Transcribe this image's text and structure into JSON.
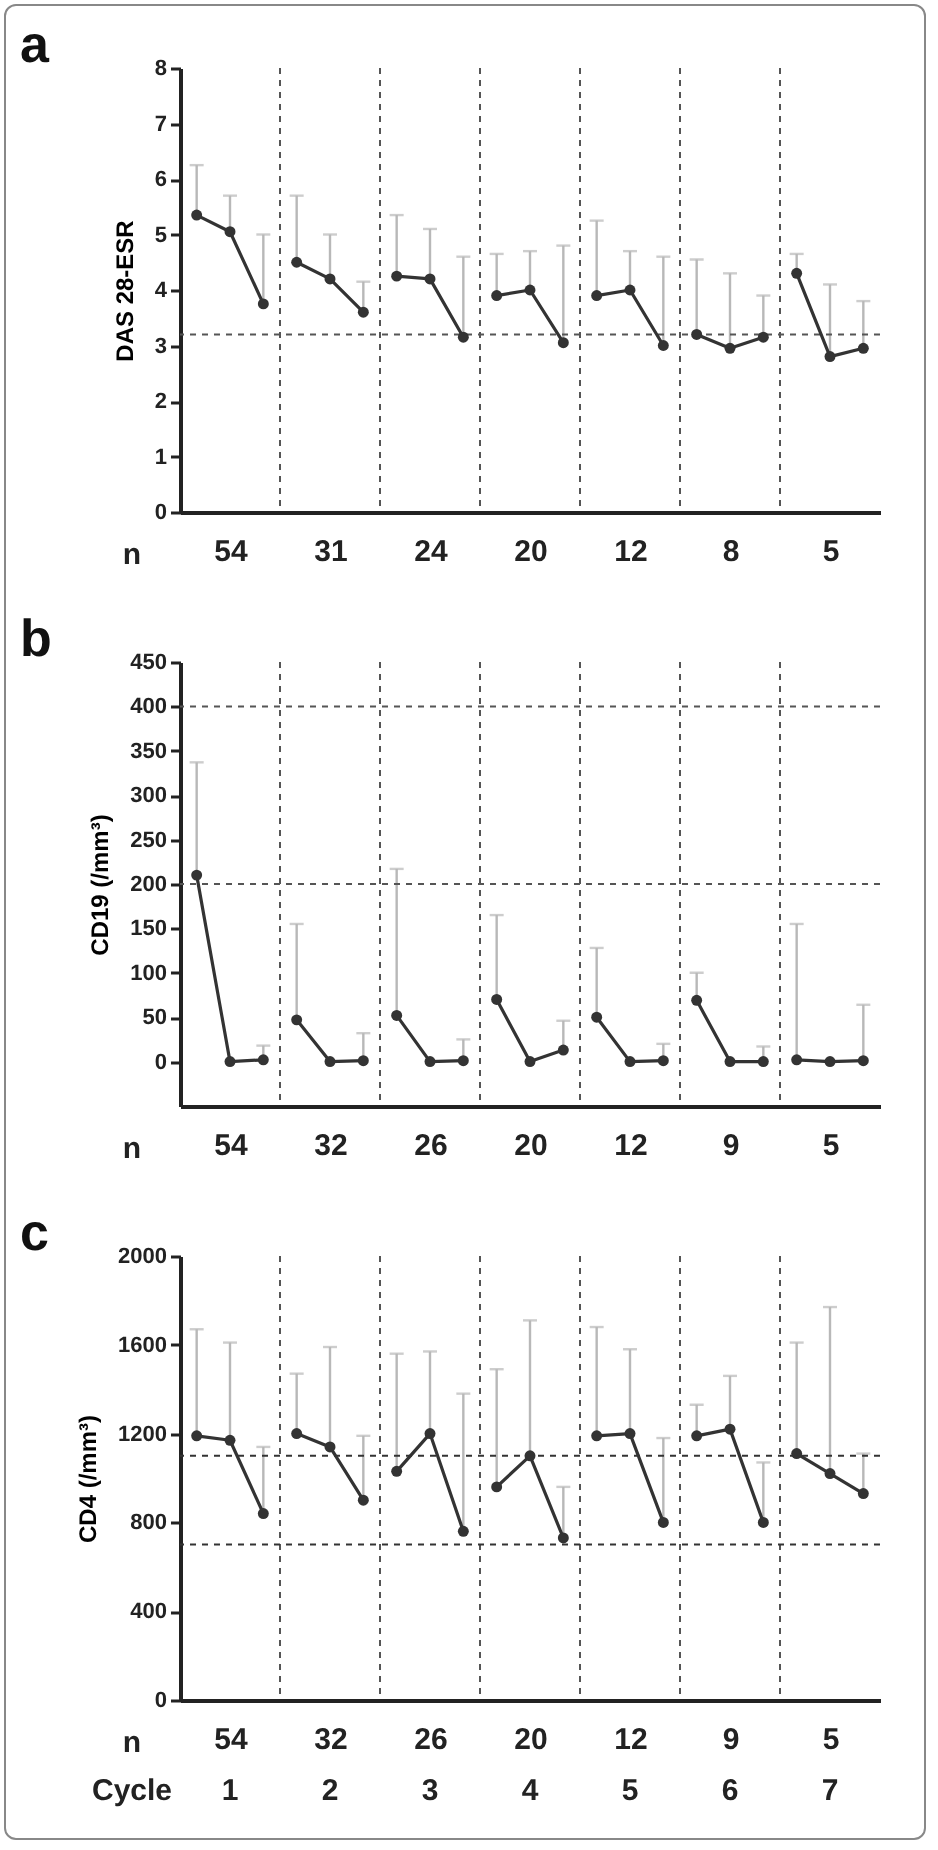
{
  "chart_data": [
    {
      "type": "line",
      "title": "a",
      "ylabel": "DAS 28-ESR",
      "marker": "circle",
      "line_style": "solid",
      "ylim": [
        0,
        8
      ],
      "yticks": [
        0,
        1,
        2,
        3,
        4,
        5,
        6,
        7,
        8
      ],
      "categories": [
        null,
        "54",
        null,
        null,
        "31",
        null,
        null,
        "24",
        null,
        null,
        "20",
        null,
        null,
        "12",
        null,
        null,
        "8",
        null,
        null,
        "5",
        null
      ],
      "annotations": [
        "n"
      ],
      "ref_lines": [
        {
          "axis": "y",
          "value": 3.2,
          "line_style": "dashed",
          "color": "#555555"
        }
      ],
      "series": [
        {
          "color": "#333333",
          "values": [
            5.35,
            5.05,
            3.75,
            null,
            null,
            null,
            null,
            null,
            null,
            null,
            null,
            null,
            null,
            null,
            null,
            null,
            null,
            null,
            null,
            null,
            null
          ],
          "errors": [
            [
              5.35,
              6.25
            ],
            [
              5.05,
              5.7
            ],
            [
              3.75,
              5.0
            ],
            null,
            null,
            null,
            null,
            null,
            null,
            null,
            null,
            null,
            null,
            null,
            null,
            null,
            null,
            null,
            null,
            null,
            null
          ]
        },
        {
          "color": "#333333",
          "values": [
            null,
            null,
            null,
            4.5,
            4.2,
            3.6,
            null,
            null,
            null,
            null,
            null,
            null,
            null,
            null,
            null,
            null,
            null,
            null,
            null,
            null,
            null
          ],
          "errors": [
            null,
            null,
            null,
            [
              4.5,
              5.7
            ],
            [
              4.2,
              5.0
            ],
            [
              3.6,
              4.15
            ],
            null,
            null,
            null,
            null,
            null,
            null,
            null,
            null,
            null,
            null,
            null,
            null,
            null,
            null,
            null
          ]
        },
        {
          "color": "#333333",
          "values": [
            null,
            null,
            null,
            null,
            null,
            null,
            4.25,
            4.2,
            3.15,
            null,
            null,
            null,
            null,
            null,
            null,
            null,
            null,
            null,
            null,
            null,
            null
          ],
          "errors": [
            null,
            null,
            null,
            null,
            null,
            null,
            [
              4.25,
              5.35
            ],
            [
              4.2,
              5.1
            ],
            [
              3.15,
              4.6
            ],
            null,
            null,
            null,
            null,
            null,
            null,
            null,
            null,
            null,
            null,
            null,
            null
          ]
        },
        {
          "color": "#333333",
          "values": [
            null,
            null,
            null,
            null,
            null,
            null,
            null,
            null,
            null,
            3.9,
            4.0,
            3.05,
            null,
            null,
            null,
            null,
            null,
            null,
            null,
            null,
            null
          ],
          "errors": [
            null,
            null,
            null,
            null,
            null,
            null,
            null,
            null,
            null,
            [
              3.9,
              4.65
            ],
            [
              4.0,
              4.7
            ],
            [
              3.05,
              4.8
            ],
            null,
            null,
            null,
            null,
            null,
            null,
            null,
            null,
            null
          ]
        },
        {
          "color": "#333333",
          "values": [
            null,
            null,
            null,
            null,
            null,
            null,
            null,
            null,
            null,
            null,
            null,
            null,
            3.9,
            4.0,
            3.0,
            null,
            null,
            null,
            null,
            null,
            null
          ],
          "errors": [
            null,
            null,
            null,
            null,
            null,
            null,
            null,
            null,
            null,
            null,
            null,
            null,
            [
              3.9,
              5.25
            ],
            [
              4.0,
              4.7
            ],
            [
              3.0,
              4.6
            ],
            null,
            null,
            null,
            null,
            null,
            null
          ]
        },
        {
          "color": "#333333",
          "values": [
            null,
            null,
            null,
            null,
            null,
            null,
            null,
            null,
            null,
            null,
            null,
            null,
            null,
            null,
            null,
            3.2,
            2.95,
            3.15,
            null,
            null,
            null
          ],
          "errors": [
            null,
            null,
            null,
            null,
            null,
            null,
            null,
            null,
            null,
            null,
            null,
            null,
            null,
            null,
            null,
            [
              3.2,
              4.55
            ],
            [
              2.95,
              4.3
            ],
            [
              3.15,
              3.9
            ],
            null,
            null,
            null
          ]
        },
        {
          "color": "#333333",
          "values": [
            null,
            null,
            null,
            null,
            null,
            null,
            null,
            null,
            null,
            null,
            null,
            null,
            null,
            null,
            null,
            null,
            null,
            null,
            4.3,
            2.8,
            2.95
          ],
          "errors": [
            null,
            null,
            null,
            null,
            null,
            null,
            null,
            null,
            null,
            null,
            null,
            null,
            null,
            null,
            null,
            null,
            null,
            null,
            [
              4.3,
              4.65
            ],
            [
              2.8,
              4.1
            ],
            [
              2.95,
              3.8
            ]
          ]
        }
      ]
    },
    {
      "type": "line",
      "title": "b",
      "ylabel": "CD19 (/mm³)",
      "marker": "circle",
      "line_style": "solid",
      "ylim": [
        -50,
        450
      ],
      "yticks": [
        0,
        50,
        100,
        150,
        200,
        250,
        300,
        350,
        400,
        450
      ],
      "categories": [
        null,
        "54",
        null,
        null,
        "32",
        null,
        null,
        "26",
        null,
        null,
        "20",
        null,
        null,
        "12",
        null,
        null,
        "9",
        null,
        null,
        "5",
        null
      ],
      "annotations": [
        "n"
      ],
      "ref_lines": [
        {
          "axis": "y",
          "value": 200,
          "line_style": "dashed",
          "color": "#555555"
        },
        {
          "axis": "y",
          "value": 400,
          "line_style": "dashed",
          "color": "#555555"
        }
      ],
      "series": [
        {
          "color": "#333333",
          "values": [
            210,
            0,
            2,
            null,
            null,
            null,
            null,
            null,
            null,
            null,
            null,
            null,
            null,
            null,
            null,
            null,
            null,
            null,
            null,
            null,
            null
          ],
          "errors": [
            [
              210,
              337
            ],
            null,
            [
              2,
              18
            ],
            null,
            null,
            null,
            null,
            null,
            null,
            null,
            null,
            null,
            null,
            null,
            null,
            null,
            null,
            null,
            null,
            null,
            null
          ]
        },
        {
          "color": "#333333",
          "values": [
            null,
            null,
            null,
            47,
            0,
            1,
            null,
            null,
            null,
            null,
            null,
            null,
            null,
            null,
            null,
            null,
            null,
            null,
            null,
            null,
            null
          ],
          "errors": [
            null,
            null,
            null,
            [
              47,
              155
            ],
            null,
            [
              1,
              32
            ],
            null,
            null,
            null,
            null,
            null,
            null,
            null,
            null,
            null,
            null,
            null,
            null,
            null,
            null,
            null
          ]
        },
        {
          "color": "#333333",
          "values": [
            null,
            null,
            null,
            null,
            null,
            null,
            52,
            0,
            1,
            null,
            null,
            null,
            null,
            null,
            null,
            null,
            null,
            null,
            null,
            null,
            null
          ],
          "errors": [
            null,
            null,
            null,
            null,
            null,
            null,
            [
              52,
              217
            ],
            null,
            [
              1,
              25
            ],
            null,
            null,
            null,
            null,
            null,
            null,
            null,
            null,
            null,
            null,
            null,
            null
          ]
        },
        {
          "color": "#333333",
          "values": [
            null,
            null,
            null,
            null,
            null,
            null,
            null,
            null,
            null,
            70,
            0,
            13,
            null,
            null,
            null,
            null,
            null,
            null,
            null,
            null,
            null
          ],
          "errors": [
            null,
            null,
            null,
            null,
            null,
            null,
            null,
            null,
            null,
            [
              70,
              165
            ],
            null,
            [
              13,
              46
            ],
            null,
            null,
            null,
            null,
            null,
            null,
            null,
            null,
            null
          ]
        },
        {
          "color": "#333333",
          "values": [
            null,
            null,
            null,
            null,
            null,
            null,
            null,
            null,
            null,
            null,
            null,
            null,
            50,
            0,
            1,
            null,
            null,
            null,
            null,
            null,
            null
          ],
          "errors": [
            null,
            null,
            null,
            null,
            null,
            null,
            null,
            null,
            null,
            null,
            null,
            null,
            [
              50,
              128
            ],
            null,
            [
              1,
              20
            ],
            null,
            null,
            null,
            null,
            null,
            null
          ]
        },
        {
          "color": "#333333",
          "values": [
            null,
            null,
            null,
            null,
            null,
            null,
            null,
            null,
            null,
            null,
            null,
            null,
            null,
            null,
            null,
            69,
            0,
            0,
            null,
            null,
            null
          ],
          "errors": [
            null,
            null,
            null,
            null,
            null,
            null,
            null,
            null,
            null,
            null,
            null,
            null,
            null,
            null,
            null,
            [
              69,
              100
            ],
            null,
            [
              0,
              17
            ],
            null,
            null,
            null
          ]
        },
        {
          "color": "#333333",
          "values": [
            null,
            null,
            null,
            null,
            null,
            null,
            null,
            null,
            null,
            null,
            null,
            null,
            null,
            null,
            null,
            null,
            null,
            null,
            2,
            0,
            1
          ],
          "errors": [
            null,
            null,
            null,
            null,
            null,
            null,
            null,
            null,
            null,
            null,
            null,
            null,
            null,
            null,
            null,
            null,
            null,
            null,
            [
              2,
              155
            ],
            null,
            [
              1,
              64
            ]
          ]
        }
      ]
    },
    {
      "type": "line",
      "title": "c",
      "ylabel": "CD4 (/mm³)",
      "marker": "circle",
      "line_style": "solid",
      "ylim": [
        0,
        2000
      ],
      "yticks": [
        0,
        400,
        800,
        1200,
        1600,
        2000
      ],
      "categories": [
        null,
        "54",
        null,
        null,
        "32",
        null,
        null,
        "26",
        null,
        null,
        "20",
        null,
        null,
        "12",
        null,
        null,
        "9",
        null,
        null,
        "5",
        null
      ],
      "annotations": [
        "n",
        "Cycle",
        "1",
        "2",
        "3",
        "4",
        "5",
        "6",
        "7"
      ],
      "ref_lines": [
        {
          "axis": "y",
          "value": 700,
          "line_style": "dashed",
          "color": "#333333"
        },
        {
          "axis": "y",
          "value": 1100,
          "line_style": "dashed",
          "color": "#333333"
        }
      ],
      "series": [
        {
          "color": "#333333",
          "values": [
            1190,
            1170,
            840,
            null,
            null,
            null,
            null,
            null,
            null,
            null,
            null,
            null,
            null,
            null,
            null,
            null,
            null,
            null,
            null,
            null,
            null
          ],
          "errors": [
            [
              1190,
              1670
            ],
            [
              1170,
              1610
            ],
            [
              840,
              1140
            ],
            null,
            null,
            null,
            null,
            null,
            null,
            null,
            null,
            null,
            null,
            null,
            null,
            null,
            null,
            null,
            null,
            null,
            null
          ]
        },
        {
          "color": "#333333",
          "values": [
            null,
            null,
            null,
            1200,
            1140,
            900,
            null,
            null,
            null,
            null,
            null,
            null,
            null,
            null,
            null,
            null,
            null,
            null,
            null,
            null,
            null
          ],
          "errors": [
            null,
            null,
            null,
            [
              1200,
              1470
            ],
            [
              1140,
              1590
            ],
            [
              900,
              1190
            ],
            null,
            null,
            null,
            null,
            null,
            null,
            null,
            null,
            null,
            null,
            null,
            null,
            null,
            null,
            null
          ]
        },
        {
          "color": "#333333",
          "values": [
            null,
            null,
            null,
            null,
            null,
            null,
            1030,
            1200,
            760,
            null,
            null,
            null,
            null,
            null,
            null,
            null,
            null,
            null,
            null,
            null,
            null
          ],
          "errors": [
            null,
            null,
            null,
            null,
            null,
            null,
            [
              1030,
              1560
            ],
            [
              1200,
              1570
            ],
            [
              760,
              1380
            ],
            null,
            null,
            null,
            null,
            null,
            null,
            null,
            null,
            null,
            null,
            null,
            null
          ]
        },
        {
          "color": "#333333",
          "values": [
            null,
            null,
            null,
            null,
            null,
            null,
            null,
            null,
            null,
            960,
            1100,
            730,
            null,
            null,
            null,
            null,
            null,
            null,
            null,
            null,
            null
          ],
          "errors": [
            null,
            null,
            null,
            null,
            null,
            null,
            null,
            null,
            null,
            [
              960,
              1490
            ],
            [
              1100,
              1710
            ],
            [
              730,
              960
            ],
            null,
            null,
            null,
            null,
            null,
            null,
            null,
            null,
            null
          ]
        },
        {
          "color": "#333333",
          "values": [
            null,
            null,
            null,
            null,
            null,
            null,
            null,
            null,
            null,
            null,
            null,
            null,
            1190,
            1200,
            800,
            null,
            null,
            null,
            null,
            null,
            null
          ],
          "errors": [
            null,
            null,
            null,
            null,
            null,
            null,
            null,
            null,
            null,
            null,
            null,
            null,
            [
              1190,
              1680
            ],
            [
              1200,
              1580
            ],
            [
              800,
              1180
            ],
            null,
            null,
            null,
            null,
            null,
            null
          ]
        },
        {
          "color": "#333333",
          "values": [
            null,
            null,
            null,
            null,
            null,
            null,
            null,
            null,
            null,
            null,
            null,
            null,
            null,
            null,
            null,
            1190,
            1220,
            800,
            null,
            null,
            null
          ],
          "errors": [
            null,
            null,
            null,
            null,
            null,
            null,
            null,
            null,
            null,
            null,
            null,
            null,
            null,
            null,
            null,
            [
              1190,
              1330
            ],
            [
              1220,
              1460
            ],
            [
              800,
              1070
            ],
            null,
            null,
            null
          ]
        },
        {
          "color": "#333333",
          "values": [
            null,
            null,
            null,
            null,
            null,
            null,
            null,
            null,
            null,
            null,
            null,
            null,
            null,
            null,
            null,
            null,
            null,
            null,
            1110,
            1020,
            930
          ],
          "errors": [
            null,
            null,
            null,
            null,
            null,
            null,
            null,
            null,
            null,
            null,
            null,
            null,
            null,
            null,
            null,
            null,
            null,
            null,
            [
              1110,
              1610
            ],
            [
              1020,
              1770
            ],
            [
              930,
              1110
            ]
          ]
        }
      ]
    }
  ]
}
